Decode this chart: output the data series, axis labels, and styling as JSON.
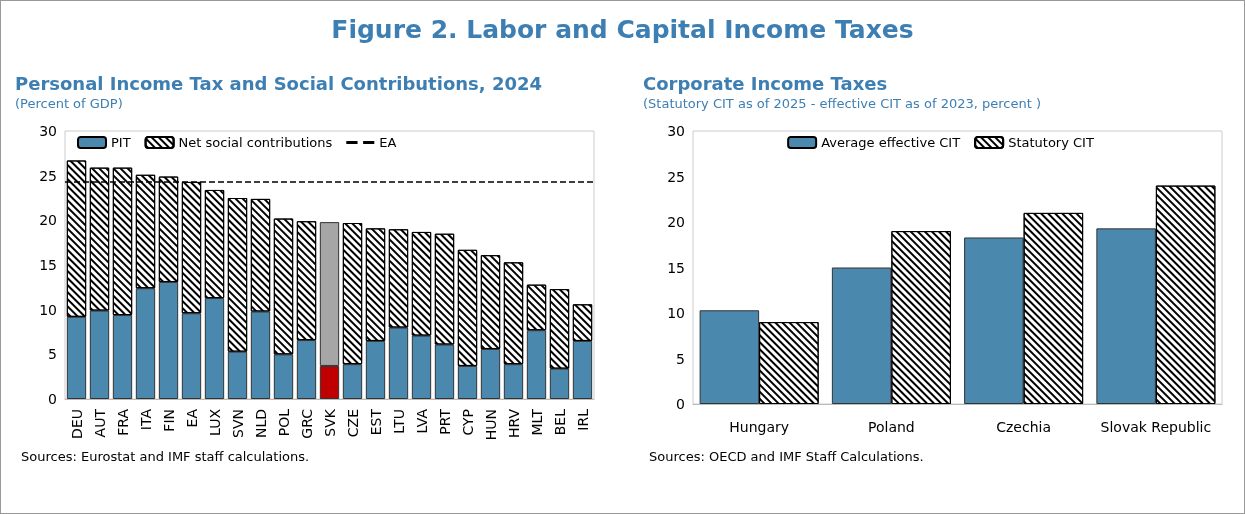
{
  "chart_data": [
    {
      "type": "other",
      "title": "Figure 2. Labor and Capital Income Taxes"
    },
    {
      "type": "bar",
      "title": "Personal Income Tax and Social Contributions, 2024",
      "subtitle": "(Percent of GDP)",
      "stacked": true,
      "legend": "top left",
      "categories": [
        "DEU",
        "AUT",
        "FRA",
        "ITA",
        "FIN",
        "EA",
        "LUX",
        "SVN",
        "NLD",
        "POL",
        "GRC",
        "SVK",
        "CZE",
        "EST",
        "LTU",
        "LVA",
        "PRT",
        "CYP",
        "HUN",
        "HRV",
        "MLT",
        "BEL",
        "IRL"
      ],
      "series": [
        {
          "name": "PIT",
          "color": "#4b88ad",
          "colors": [
            "#4b88ad",
            "#4b88ad",
            "#4b88ad",
            "#4b88ad",
            "#4b88ad",
            "#4b88ad",
            "#4b88ad",
            "#4b88ad",
            "#4b88ad",
            "#4b88ad",
            "#4b88ad",
            "#c00000",
            "#4b88ad",
            "#4b88ad",
            "#4b88ad",
            "#4b88ad",
            "#4b88ad",
            "#4b88ad",
            "#4b88ad",
            "#4b88ad",
            "#4b88ad",
            "#4b88ad",
            "#4b88ad"
          ],
          "values": [
            9.2,
            9.9,
            9.4,
            12.4,
            13.1,
            9.6,
            11.3,
            5.3,
            9.8,
            5.0,
            6.6,
            3.7,
            3.9,
            6.5,
            8.0,
            7.1,
            6.1,
            3.7,
            5.6,
            3.9,
            7.7,
            3.4,
            6.5
          ]
        },
        {
          "name": "Net social contributions",
          "color": "#ffffff",
          "colors": [
            "#ffffff",
            "#ffffff",
            "#ffffff",
            "#ffffff",
            "#ffffff",
            "#ffffff",
            "#ffffff",
            "#ffffff",
            "#ffffff",
            "#ffffff",
            "#ffffff",
            "#a6a6a6",
            "#ffffff",
            "#ffffff",
            "#ffffff",
            "#ffffff",
            "#ffffff",
            "#ffffff",
            "#ffffff",
            "#ffffff",
            "#ffffff",
            "#ffffff",
            "#ffffff"
          ],
          "values": [
            17.5,
            16.0,
            16.5,
            12.7,
            11.8,
            14.7,
            12.1,
            17.2,
            12.6,
            15.2,
            13.3,
            16.1,
            15.8,
            12.6,
            11.0,
            11.6,
            12.4,
            13.0,
            10.5,
            11.4,
            5.1,
            8.9,
            4.1
          ]
        }
      ],
      "ref_lines": [
        {
          "axis": "y",
          "value": 24.3,
          "label": "EA",
          "color": "#000000",
          "line_style": "dashed"
        }
      ],
      "ylim": [
        0,
        30
      ],
      "yticks": [
        0,
        5,
        10,
        15,
        20,
        25,
        30
      ],
      "grid": false,
      "annotations": [
        "Sources: Eurostat and IMF staff calculations."
      ]
    },
    {
      "type": "bar",
      "title": "Corporate Income Taxes",
      "subtitle": "(Statutory CIT as of 2025 - effective CIT as of 2023, percent )",
      "legend": "top",
      "categories": [
        "Hungary",
        "Poland",
        "Czechia",
        "Slovak Republic"
      ],
      "series": [
        {
          "name": "Average effective CIT",
          "color": "#4b88ad",
          "values": [
            10.3,
            15.0,
            18.3,
            19.3
          ]
        },
        {
          "name": "Statutory CIT",
          "color": "#ffffff",
          "values": [
            9.0,
            19.0,
            21.0,
            24.0
          ]
        }
      ],
      "ylim": [
        0,
        30
      ],
      "yticks": [
        0,
        5,
        10,
        15,
        20,
        25,
        30
      ],
      "grid": false,
      "annotations": [
        "Sources: OECD and IMF Staff Calculations."
      ]
    }
  ]
}
